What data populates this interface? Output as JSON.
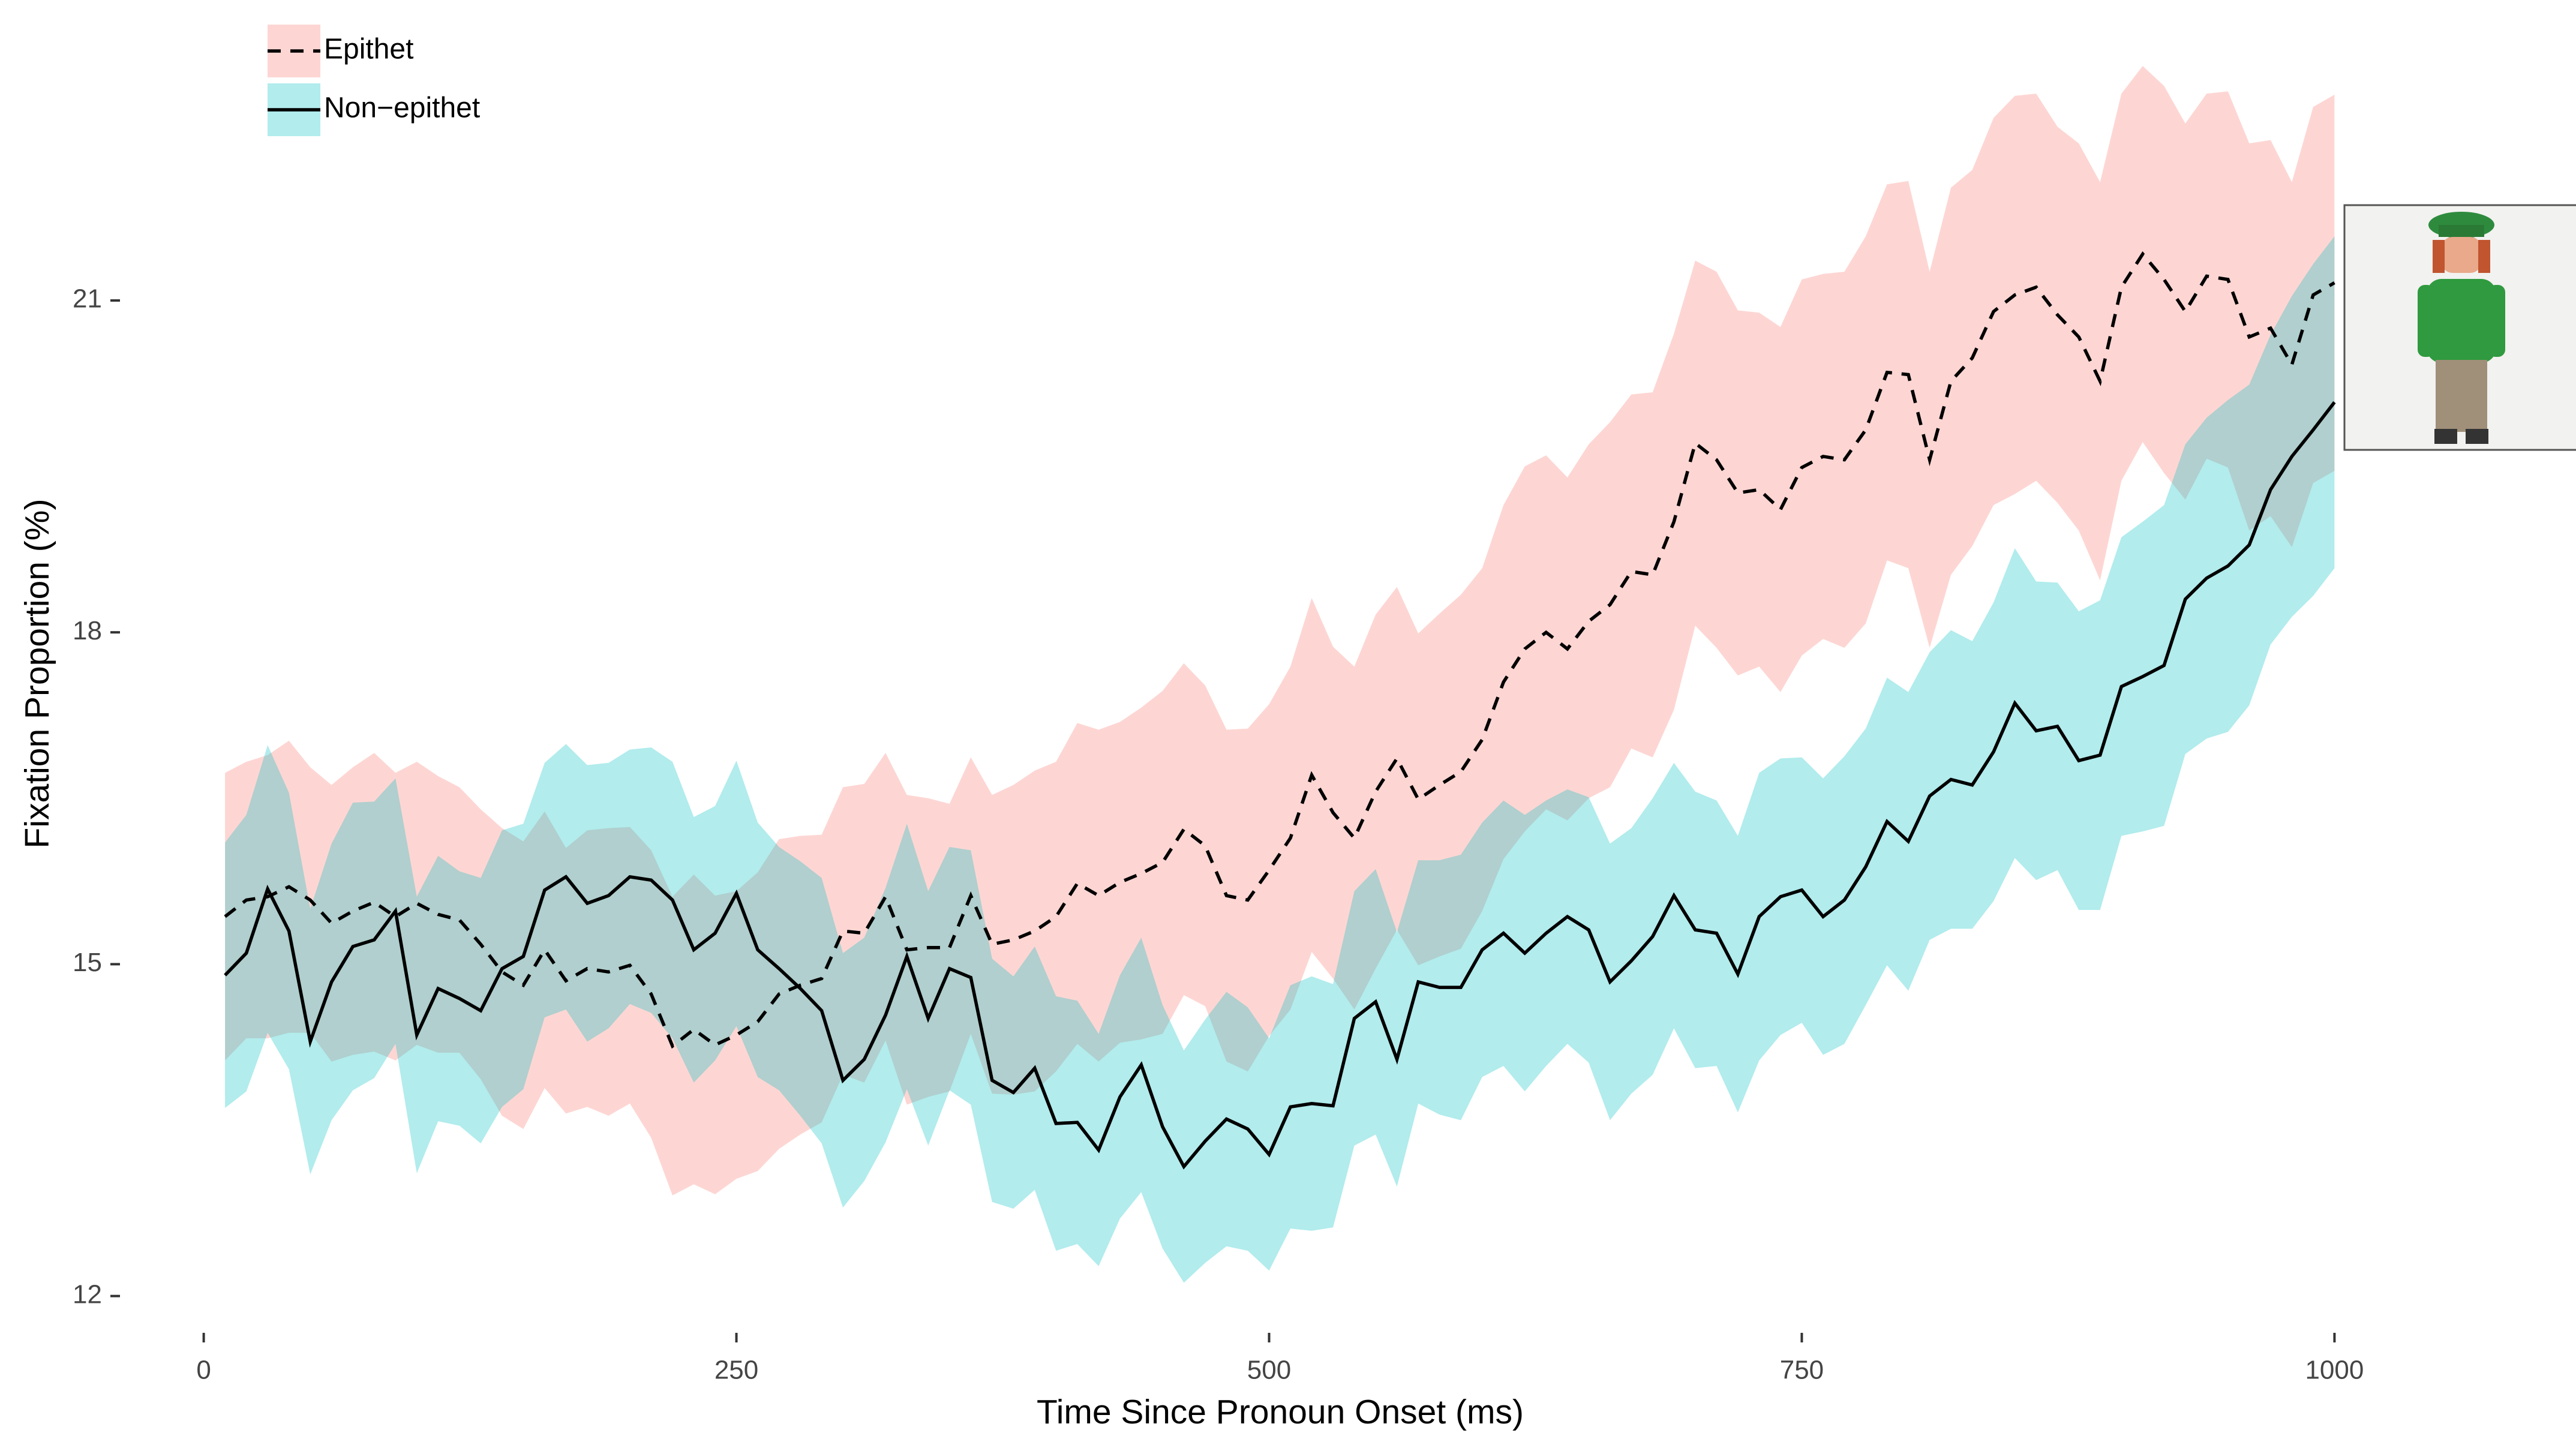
{
  "chart_data": {
    "type": "line",
    "x_label": "Time Since Pronoun Onset (ms)",
    "y_label": "Fixation Proportion (%)",
    "x": [
      10,
      20,
      30,
      40,
      50,
      60,
      70,
      80,
      90,
      100,
      110,
      120,
      130,
      140,
      150,
      160,
      170,
      180,
      190,
      200,
      210,
      220,
      230,
      240,
      250,
      260,
      270,
      280,
      290,
      300,
      310,
      320,
      330,
      340,
      350,
      360,
      370,
      380,
      390,
      400,
      410,
      420,
      430,
      440,
      450,
      460,
      470,
      480,
      490,
      500,
      510,
      520,
      530,
      540,
      550,
      560,
      570,
      580,
      590,
      600,
      610,
      620,
      630,
      640,
      650,
      660,
      670,
      680,
      690,
      700,
      710,
      720,
      730,
      740,
      750,
      760,
      770,
      780,
      790,
      800,
      810,
      820,
      830,
      840,
      850,
      860,
      870,
      880,
      890,
      900,
      910,
      920,
      930,
      940,
      950,
      960,
      970,
      980,
      990,
      1000
    ],
    "series": [
      {
        "name": "Epithet",
        "color": "#F8766D",
        "line_color": "#000000",
        "line_style": "dashed",
        "values": [
          15.43,
          15.58,
          15.61,
          15.7,
          15.58,
          15.37,
          15.48,
          15.56,
          15.43,
          15.55,
          15.45,
          15.4,
          15.18,
          14.93,
          14.81,
          15.13,
          14.85,
          14.96,
          14.93,
          14.99,
          14.73,
          14.26,
          14.41,
          14.27,
          14.36,
          14.48,
          14.73,
          14.81,
          14.87,
          15.3,
          15.28,
          15.61,
          15.13,
          15.15,
          15.15,
          15.62,
          15.18,
          15.22,
          15.3,
          15.43,
          15.73,
          15.62,
          15.74,
          15.82,
          15.92,
          16.22,
          16.07,
          15.62,
          15.58,
          15.85,
          16.14,
          16.71,
          16.37,
          16.14,
          16.56,
          16.86,
          16.49,
          16.62,
          16.74,
          17.03,
          17.55,
          17.85,
          18.0,
          17.85,
          18.1,
          18.25,
          18.55,
          18.52,
          19.0,
          19.71,
          19.56,
          19.26,
          19.29,
          19.11,
          19.49,
          19.59,
          19.56,
          19.83,
          20.35,
          20.33,
          19.56,
          20.27,
          20.48,
          20.9,
          21.05,
          21.12,
          20.87,
          20.67,
          20.27,
          21.12,
          21.42,
          21.19,
          20.9,
          21.22,
          21.19,
          20.67,
          20.75,
          20.42,
          21.05,
          21.16
        ],
        "ci": [
          1.3,
          1.25,
          1.28,
          1.32,
          1.2,
          1.25,
          1.3,
          1.35,
          1.3,
          1.28,
          1.25,
          1.2,
          1.22,
          1.3,
          1.3,
          1.25,
          1.2,
          1.25,
          1.3,
          1.25,
          1.3,
          1.35,
          1.4,
          1.35,
          1.3,
          1.35,
          1.4,
          1.35,
          1.3,
          1.3,
          1.35,
          1.3,
          1.4,
          1.35,
          1.3,
          1.25,
          1.35,
          1.4,
          1.45,
          1.4,
          1.45,
          1.5,
          1.45,
          1.5,
          1.55,
          1.5,
          1.45,
          1.5,
          1.55,
          1.5,
          1.55,
          1.6,
          1.5,
          1.55,
          1.6,
          1.55,
          1.5,
          1.55,
          1.6,
          1.55,
          1.6,
          1.65,
          1.6,
          1.55,
          1.6,
          1.65,
          1.6,
          1.65,
          1.7,
          1.65,
          1.7,
          1.65,
          1.6,
          1.65,
          1.7,
          1.65,
          1.7,
          1.75,
          1.7,
          1.75,
          1.7,
          1.75,
          1.7,
          1.75,
          1.8,
          1.75,
          1.7,
          1.75,
          1.8,
          1.75,
          1.7,
          1.75,
          1.7,
          1.65,
          1.7,
          1.75,
          1.7,
          1.65,
          1.7,
          1.7
        ]
      },
      {
        "name": "Non−epithet",
        "color": "#00BFC4",
        "line_color": "#000000",
        "line_style": "solid",
        "values": [
          14.9,
          15.1,
          15.68,
          15.3,
          14.3,
          14.84,
          15.16,
          15.22,
          15.48,
          14.36,
          14.78,
          14.69,
          14.58,
          14.96,
          15.07,
          15.67,
          15.79,
          15.55,
          15.62,
          15.79,
          15.76,
          15.58,
          15.13,
          15.28,
          15.64,
          15.13,
          14.96,
          14.78,
          14.58,
          13.95,
          14.14,
          14.54,
          15.07,
          14.51,
          14.96,
          14.88,
          13.95,
          13.84,
          14.06,
          13.56,
          13.57,
          13.32,
          13.8,
          14.09,
          13.53,
          13.17,
          13.4,
          13.6,
          13.51,
          13.28,
          13.71,
          13.74,
          13.72,
          14.51,
          14.66,
          14.14,
          14.84,
          14.79,
          14.79,
          15.13,
          15.28,
          15.1,
          15.28,
          15.43,
          15.31,
          14.84,
          15.03,
          15.25,
          15.62,
          15.31,
          15.28,
          14.91,
          15.43,
          15.61,
          15.67,
          15.43,
          15.58,
          15.88,
          16.29,
          16.11,
          16.52,
          16.67,
          16.62,
          16.92,
          17.36,
          17.11,
          17.15,
          16.84,
          16.89,
          17.51,
          17.6,
          17.7,
          18.3,
          18.49,
          18.6,
          18.79,
          19.29,
          19.59,
          19.83,
          20.08
        ],
        "ci": [
          1.2,
          1.25,
          1.3,
          1.25,
          1.2,
          1.25,
          1.3,
          1.25,
          1.2,
          1.25,
          1.2,
          1.15,
          1.2,
          1.25,
          1.2,
          1.15,
          1.2,
          1.25,
          1.2,
          1.15,
          1.2,
          1.25,
          1.2,
          1.15,
          1.2,
          1.15,
          1.1,
          1.15,
          1.2,
          1.15,
          1.1,
          1.15,
          1.2,
          1.15,
          1.1,
          1.15,
          1.1,
          1.05,
          1.1,
          1.15,
          1.1,
          1.05,
          1.1,
          1.15,
          1.1,
          1.05,
          1.1,
          1.15,
          1.1,
          1.05,
          1.1,
          1.15,
          1.1,
          1.15,
          1.2,
          1.15,
          1.1,
          1.15,
          1.2,
          1.15,
          1.2,
          1.25,
          1.2,
          1.15,
          1.2,
          1.25,
          1.2,
          1.25,
          1.2,
          1.25,
          1.2,
          1.25,
          1.3,
          1.25,
          1.2,
          1.25,
          1.3,
          1.25,
          1.3,
          1.35,
          1.3,
          1.35,
          1.3,
          1.35,
          1.4,
          1.35,
          1.3,
          1.35,
          1.4,
          1.35,
          1.4,
          1.45,
          1.4,
          1.45,
          1.5,
          1.45,
          1.4,
          1.45,
          1.5,
          1.5
        ]
      }
    ],
    "xlim": [
      -50,
      1050
    ],
    "xticks": [
      0,
      250,
      500,
      750,
      1000
    ],
    "ylim": [
      11.7,
      23.7
    ],
    "yticks": [
      12,
      15,
      18,
      21
    ],
    "ribbon_opacity": 0.3,
    "legend": "top-left",
    "grid": false
  }
}
